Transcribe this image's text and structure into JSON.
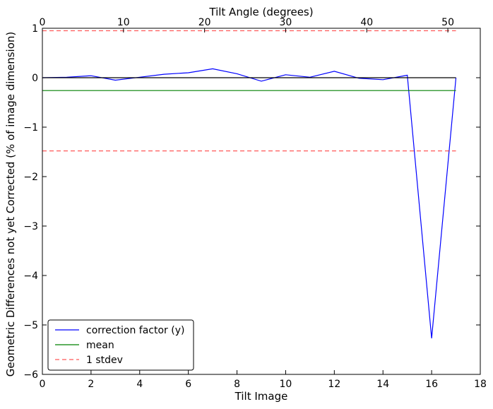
{
  "chart_data": {
    "type": "line",
    "title": "",
    "xlabel": "Tilt Image",
    "ylabel": "Geometric Differences not yet Corrected (% of image dimension)",
    "top_xlabel": "Tilt Angle (degrees)",
    "xlim": [
      0,
      18
    ],
    "ylim": [
      -6,
      1
    ],
    "top_xlim": [
      0,
      54
    ],
    "x_ticks": [
      0,
      2,
      4,
      6,
      8,
      10,
      12,
      14,
      16,
      18
    ],
    "x_tick_labels": [
      "0",
      "2",
      "4",
      "6",
      "8",
      "10",
      "12",
      "14",
      "16",
      "18"
    ],
    "y_ticks": [
      1,
      0,
      -1,
      -2,
      -3,
      -4,
      -5,
      -6
    ],
    "y_tick_labels": [
      "1",
      "0",
      "−1",
      "−2",
      "−3",
      "−4",
      "−5",
      "−6"
    ],
    "top_x_ticks": [
      0,
      10,
      20,
      30,
      40,
      50
    ],
    "top_x_tick_labels": [
      "0",
      "10",
      "20",
      "30",
      "40",
      "50"
    ],
    "grid": false,
    "legend_position": "lower-left",
    "series": [
      {
        "name": "correction factor (y)",
        "style": "solid",
        "color": "#0000ff",
        "x": [
          0,
          1,
          2,
          3,
          4,
          5,
          6,
          7,
          8,
          9,
          10,
          11,
          12,
          13,
          14,
          15,
          16,
          17
        ],
        "values": [
          0.0,
          0.01,
          0.04,
          -0.05,
          0.01,
          0.07,
          0.1,
          0.18,
          0.08,
          -0.07,
          0.06,
          0.01,
          0.13,
          -0.01,
          -0.04,
          0.05,
          -5.27,
          0.0
        ]
      },
      {
        "name": "mean",
        "style": "solid",
        "color": "#008000",
        "x": [
          0,
          17
        ],
        "values": [
          -0.26,
          -0.26
        ]
      },
      {
        "name": "1 stdev",
        "style": "dashed",
        "color": "#ff0000",
        "x": [
          0,
          17
        ],
        "values": [
          0.95,
          0.95
        ]
      },
      {
        "name": "1 stdev",
        "style": "dashed",
        "color": "#ff0000",
        "x": [
          0,
          17
        ],
        "values": [
          -1.48,
          -1.48
        ],
        "legend": false
      },
      {
        "name": "",
        "style": "solid",
        "color": "#000000",
        "x": [
          0,
          17
        ],
        "values": [
          0,
          0
        ],
        "legend": false
      }
    ]
  }
}
